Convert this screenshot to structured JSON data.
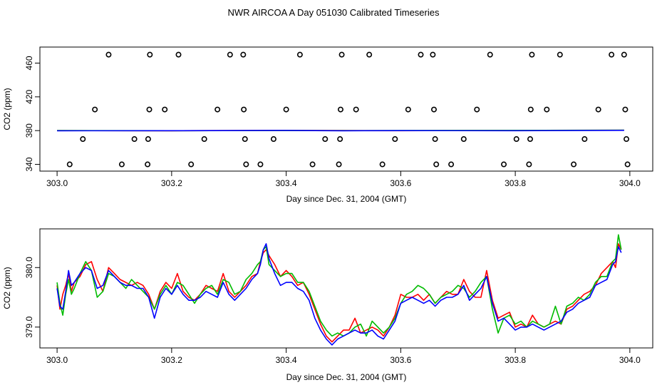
{
  "title": "NWR AIRCOA A  Day 051030  Calibrated Timeseries",
  "chart_data": [
    {
      "type": "scatter",
      "xlabel": "Day since Dec. 31, 2004 (GMT)",
      "ylabel": "CO2 (ppm)",
      "xlim": [
        302.97,
        304.04
      ],
      "ylim": [
        332,
        479
      ],
      "xticks": [
        303.0,
        303.2,
        303.4,
        303.6,
        303.8,
        304.0
      ],
      "xtick_labels": [
        "303.0",
        "303.2",
        "303.4",
        "303.6",
        "303.8",
        "304.0"
      ],
      "yticks": [
        340,
        380,
        420,
        460
      ],
      "ytick_labels": [
        "340",
        "380",
        "420",
        "460"
      ],
      "series": [
        {
          "marker": "open-circle",
          "color": "#000000",
          "points": [
            [
              303.022,
              340
            ],
            [
              303.045,
              370
            ],
            [
              303.066,
              405
            ],
            [
              303.09,
              470
            ],
            [
              303.113,
              340
            ],
            [
              303.135,
              370
            ],
            [
              303.158,
              340
            ],
            [
              303.159,
              370
            ],
            [
              303.161,
              405
            ],
            [
              303.162,
              470
            ],
            [
              303.188,
              405
            ],
            [
              303.212,
              470
            ],
            [
              303.234,
              340
            ],
            [
              303.257,
              370
            ],
            [
              303.28,
              405
            ],
            [
              303.302,
              470
            ],
            [
              303.325,
              470
            ],
            [
              303.326,
              405
            ],
            [
              303.328,
              370
            ],
            [
              303.33,
              340
            ],
            [
              303.355,
              340
            ],
            [
              303.378,
              370
            ],
            [
              303.4,
              405
            ],
            [
              303.424,
              470
            ],
            [
              303.446,
              340
            ],
            [
              303.468,
              370
            ],
            [
              303.492,
              340
            ],
            [
              303.494,
              370
            ],
            [
              303.495,
              405
            ],
            [
              303.497,
              470
            ],
            [
              303.522,
              405
            ],
            [
              303.545,
              470
            ],
            [
              303.568,
              340
            ],
            [
              303.59,
              370
            ],
            [
              303.613,
              405
            ],
            [
              303.635,
              470
            ],
            [
              303.656,
              470
            ],
            [
              303.658,
              405
            ],
            [
              303.66,
              370
            ],
            [
              303.662,
              340
            ],
            [
              303.688,
              340
            ],
            [
              303.71,
              370
            ],
            [
              303.733,
              405
            ],
            [
              303.756,
              470
            ],
            [
              303.78,
              340
            ],
            [
              303.802,
              370
            ],
            [
              303.824,
              340
            ],
            [
              303.826,
              370
            ],
            [
              303.827,
              405
            ],
            [
              303.829,
              470
            ],
            [
              303.855,
              405
            ],
            [
              303.878,
              470
            ],
            [
              303.902,
              340
            ],
            [
              303.921,
              370
            ],
            [
              303.945,
              405
            ],
            [
              303.968,
              470
            ],
            [
              303.99,
              470
            ],
            [
              303.992,
              405
            ],
            [
              303.994,
              370
            ],
            [
              303.996,
              340
            ]
          ]
        },
        {
          "color": "#ff0000",
          "x": [
            303.0,
            303.2,
            303.4,
            303.5,
            303.6,
            303.8,
            303.99
          ],
          "y": [
            380.0,
            379.8,
            380.2,
            380.1,
            379.9,
            380.2,
            380.4
          ]
        },
        {
          "color": "#00bb00",
          "x": [
            303.0,
            303.2,
            303.4,
            303.5,
            303.6,
            303.8,
            303.99
          ],
          "y": [
            380.1,
            379.9,
            380.1,
            380.0,
            380.1,
            380.3,
            380.5
          ]
        },
        {
          "color": "#0000ff",
          "x": [
            303.0,
            303.2,
            303.4,
            303.5,
            303.6,
            303.8,
            303.99
          ],
          "y": [
            379.8,
            379.9,
            380.2,
            379.8,
            380.0,
            379.9,
            380.3
          ]
        }
      ]
    },
    {
      "type": "line",
      "xlabel": "Day since Dec. 31, 2004 (GMT)",
      "ylabel": "CO2 (ppm)",
      "xlim": [
        302.97,
        304.04
      ],
      "ylim": [
        378.65,
        380.65
      ],
      "xticks": [
        303.0,
        303.2,
        303.4,
        303.6,
        303.8,
        304.0
      ],
      "xtick_labels": [
        "303.0",
        "303.2",
        "303.4",
        "303.6",
        "303.8",
        "304.0"
      ],
      "yticks": [
        379.0,
        380.0
      ],
      "ytick_labels": [
        "379.0",
        "380.0"
      ],
      "series": [
        {
          "color": "#ff0000",
          "x": [
            303.0,
            303.005,
            303.01,
            303.015,
            303.02,
            303.025,
            303.03,
            303.04,
            303.05,
            303.06,
            303.07,
            303.08,
            303.09,
            303.1,
            303.11,
            303.12,
            303.13,
            303.14,
            303.15,
            303.16,
            303.17,
            303.18,
            303.19,
            303.2,
            303.21,
            303.22,
            303.23,
            303.24,
            303.25,
            303.26,
            303.27,
            303.28,
            303.29,
            303.3,
            303.31,
            303.32,
            303.33,
            303.34,
            303.35,
            303.355,
            303.36,
            303.365,
            303.37,
            303.38,
            303.39,
            303.4,
            303.41,
            303.42,
            303.43,
            303.44,
            303.45,
            303.46,
            303.47,
            303.48,
            303.49,
            303.5,
            303.51,
            303.52,
            303.53,
            303.54,
            303.55,
            303.56,
            303.57,
            303.58,
            303.59,
            303.6,
            303.61,
            303.62,
            303.63,
            303.64,
            303.65,
            303.66,
            303.67,
            303.68,
            303.69,
            303.7,
            303.71,
            303.72,
            303.73,
            303.74,
            303.75,
            303.76,
            303.77,
            303.78,
            303.79,
            303.8,
            303.81,
            303.82,
            303.83,
            303.84,
            303.85,
            303.86,
            303.87,
            303.88,
            303.89,
            303.9,
            303.91,
            303.92,
            303.93,
            303.94,
            303.95,
            303.96,
            303.97,
            303.975,
            303.98,
            303.985
          ],
          "y": [
            379.7,
            379.3,
            379.55,
            379.7,
            379.9,
            379.6,
            379.75,
            379.85,
            380.05,
            380.1,
            379.8,
            379.6,
            380.0,
            379.9,
            379.8,
            379.75,
            379.7,
            379.75,
            379.7,
            379.55,
            379.3,
            379.6,
            379.75,
            379.65,
            379.9,
            379.6,
            379.5,
            379.45,
            379.55,
            379.7,
            379.65,
            379.6,
            379.9,
            379.6,
            379.5,
            379.6,
            379.7,
            379.85,
            379.9,
            380.1,
            380.25,
            380.3,
            380.2,
            380.05,
            379.85,
            379.95,
            379.85,
            379.7,
            379.75,
            379.55,
            379.3,
            379.05,
            378.85,
            378.75,
            378.85,
            378.95,
            378.95,
            379.15,
            378.9,
            378.95,
            379.0,
            378.95,
            378.85,
            379.0,
            379.2,
            379.55,
            379.5,
            379.5,
            379.55,
            379.45,
            379.55,
            379.4,
            379.5,
            379.6,
            379.55,
            379.55,
            379.8,
            379.6,
            379.5,
            379.5,
            379.95,
            379.45,
            379.15,
            379.2,
            379.25,
            379.0,
            379.05,
            379.0,
            379.2,
            379.05,
            379.0,
            379.05,
            379.1,
            379.05,
            379.3,
            379.35,
            379.45,
            379.55,
            379.6,
            379.7,
            379.9,
            380.0,
            380.1,
            380.0,
            380.4,
            380.3
          ]
        },
        {
          "color": "#00bb00",
          "x": [
            303.0,
            303.005,
            303.01,
            303.015,
            303.02,
            303.025,
            303.03,
            303.04,
            303.05,
            303.06,
            303.07,
            303.08,
            303.09,
            303.1,
            303.11,
            303.12,
            303.13,
            303.14,
            303.15,
            303.16,
            303.17,
            303.18,
            303.19,
            303.2,
            303.21,
            303.22,
            303.23,
            303.24,
            303.25,
            303.26,
            303.27,
            303.28,
            303.29,
            303.3,
            303.31,
            303.32,
            303.33,
            303.34,
            303.35,
            303.355,
            303.36,
            303.365,
            303.37,
            303.38,
            303.39,
            303.4,
            303.41,
            303.42,
            303.43,
            303.44,
            303.45,
            303.46,
            303.47,
            303.48,
            303.49,
            303.5,
            303.51,
            303.52,
            303.53,
            303.54,
            303.55,
            303.56,
            303.57,
            303.58,
            303.59,
            303.6,
            303.61,
            303.62,
            303.63,
            303.64,
            303.65,
            303.66,
            303.67,
            303.68,
            303.69,
            303.7,
            303.71,
            303.72,
            303.73,
            303.74,
            303.75,
            303.76,
            303.77,
            303.78,
            303.79,
            303.8,
            303.81,
            303.82,
            303.83,
            303.84,
            303.85,
            303.86,
            303.87,
            303.88,
            303.89,
            303.9,
            303.91,
            303.92,
            303.93,
            303.94,
            303.95,
            303.96,
            303.97,
            303.975,
            303.98,
            303.985
          ],
          "y": [
            379.75,
            379.4,
            379.2,
            379.55,
            379.8,
            379.55,
            379.65,
            379.9,
            380.1,
            379.95,
            379.5,
            379.6,
            379.9,
            379.85,
            379.75,
            379.65,
            379.8,
            379.7,
            379.6,
            379.5,
            379.3,
            379.55,
            379.7,
            379.55,
            379.75,
            379.7,
            379.55,
            379.4,
            379.55,
            379.65,
            379.7,
            379.55,
            379.8,
            379.75,
            379.55,
            379.6,
            379.8,
            379.9,
            380.05,
            380.1,
            380.3,
            380.35,
            380.05,
            379.95,
            379.85,
            379.9,
            379.9,
            379.75,
            379.75,
            379.6,
            379.35,
            379.1,
            378.95,
            378.85,
            378.9,
            378.85,
            378.9,
            379.0,
            379.05,
            378.85,
            379.1,
            379.0,
            378.9,
            379.0,
            379.15,
            379.4,
            379.55,
            379.6,
            379.7,
            379.65,
            379.55,
            379.4,
            379.5,
            379.55,
            379.6,
            379.7,
            379.65,
            379.5,
            379.6,
            379.75,
            379.85,
            379.3,
            378.9,
            379.15,
            379.2,
            379.05,
            379.1,
            379.0,
            379.1,
            379.05,
            379.0,
            379.05,
            379.35,
            379.05,
            379.35,
            379.4,
            379.5,
            379.45,
            379.55,
            379.75,
            379.85,
            379.85,
            380.1,
            380.15,
            380.55,
            380.3
          ]
        },
        {
          "color": "#0000ff",
          "x": [
            303.0,
            303.005,
            303.01,
            303.015,
            303.02,
            303.025,
            303.03,
            303.04,
            303.05,
            303.06,
            303.07,
            303.08,
            303.09,
            303.1,
            303.11,
            303.12,
            303.13,
            303.14,
            303.15,
            303.16,
            303.17,
            303.18,
            303.19,
            303.2,
            303.21,
            303.22,
            303.23,
            303.24,
            303.25,
            303.26,
            303.27,
            303.28,
            303.29,
            303.3,
            303.31,
            303.32,
            303.33,
            303.34,
            303.35,
            303.355,
            303.36,
            303.365,
            303.37,
            303.38,
            303.39,
            303.4,
            303.41,
            303.42,
            303.43,
            303.44,
            303.45,
            303.46,
            303.47,
            303.48,
            303.49,
            303.5,
            303.51,
            303.52,
            303.53,
            303.54,
            303.55,
            303.56,
            303.57,
            303.58,
            303.59,
            303.6,
            303.61,
            303.62,
            303.63,
            303.64,
            303.65,
            303.66,
            303.67,
            303.68,
            303.69,
            303.7,
            303.71,
            303.72,
            303.73,
            303.74,
            303.75,
            303.76,
            303.77,
            303.78,
            303.79,
            303.8,
            303.81,
            303.82,
            303.83,
            303.84,
            303.85,
            303.86,
            303.87,
            303.88,
            303.89,
            303.9,
            303.91,
            303.92,
            303.93,
            303.94,
            303.95,
            303.96,
            303.97,
            303.975,
            303.98,
            303.985
          ],
          "y": [
            379.65,
            379.35,
            379.3,
            379.6,
            379.95,
            379.7,
            379.75,
            379.9,
            380.0,
            379.95,
            379.65,
            379.7,
            379.95,
            379.85,
            379.75,
            379.7,
            379.7,
            379.65,
            379.65,
            379.5,
            379.15,
            379.5,
            379.65,
            379.55,
            379.7,
            379.55,
            379.45,
            379.45,
            379.5,
            379.6,
            379.55,
            379.5,
            379.75,
            379.55,
            379.45,
            379.55,
            379.65,
            379.8,
            379.9,
            380.05,
            380.3,
            380.4,
            380.15,
            379.9,
            379.7,
            379.75,
            379.75,
            379.65,
            379.6,
            379.45,
            379.15,
            378.95,
            378.8,
            378.7,
            378.8,
            378.85,
            378.9,
            378.95,
            378.9,
            378.9,
            378.95,
            378.85,
            378.8,
            378.95,
            379.1,
            379.4,
            379.45,
            379.5,
            379.45,
            379.4,
            379.45,
            379.35,
            379.45,
            379.5,
            379.5,
            379.55,
            379.7,
            379.45,
            379.55,
            379.65,
            379.85,
            379.4,
            379.1,
            379.15,
            379.05,
            378.95,
            379.0,
            379.0,
            379.05,
            379.0,
            378.95,
            379.0,
            379.05,
            379.1,
            379.25,
            379.3,
            379.4,
            379.45,
            379.5,
            379.7,
            379.75,
            379.8,
            380.05,
            380.1,
            380.35,
            380.25
          ]
        }
      ]
    }
  ]
}
